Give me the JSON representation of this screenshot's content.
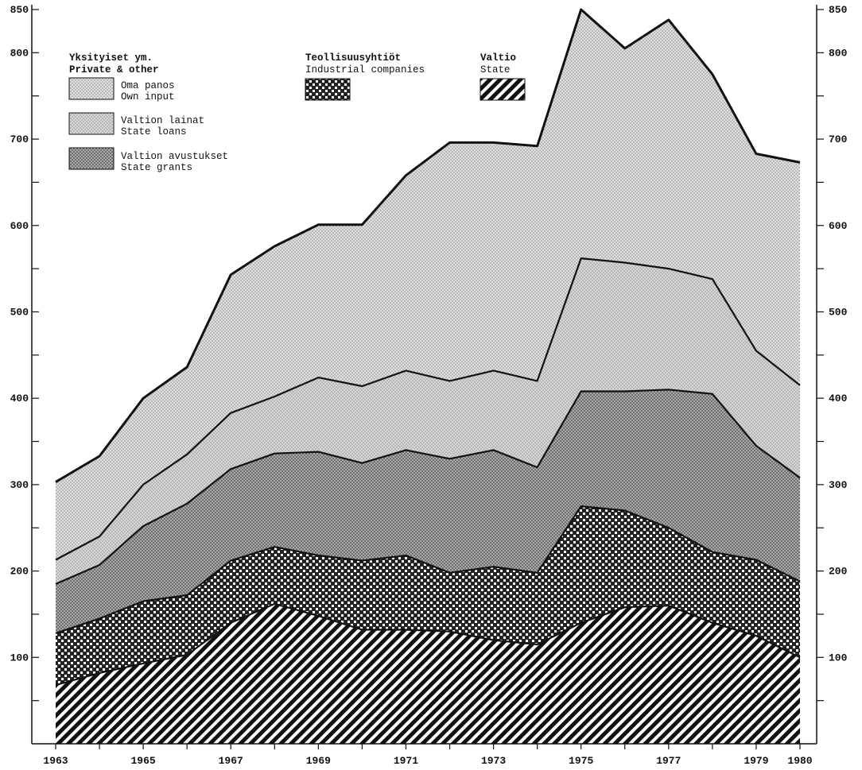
{
  "chart_data": {
    "type": "area",
    "stacked": true,
    "x": [
      1963,
      1964,
      1965,
      1966,
      1967,
      1968,
      1969,
      1970,
      1971,
      1972,
      1973,
      1974,
      1975,
      1976,
      1977,
      1978,
      1979,
      1980
    ],
    "x_tick_labels": [
      "1963",
      "1965",
      "1967",
      "1969",
      "1971",
      "1973",
      "1975",
      "1977",
      "1979",
      "1980"
    ],
    "y_tick_labels": [
      "100",
      "200",
      "300",
      "400",
      "500",
      "600",
      "700",
      "800",
      "850"
    ],
    "ylim": [
      0,
      850
    ],
    "grid": false,
    "legend": {
      "groups": [
        {
          "title_fi": "Yksityiset ym.",
          "title_en": "Private & other",
          "entries": [
            {
              "fi": "Oma panos",
              "en": "Own input",
              "pattern": "fine-dots-light"
            },
            {
              "fi": "Valtion lainat",
              "en": "State loans",
              "pattern": "fine-dots-lighter"
            },
            {
              "fi": "Valtion avustukset",
              "en": "State grants",
              "pattern": "dense-dots"
            }
          ]
        },
        {
          "title_fi": "Teollisuusyhtiöt",
          "title_en": "Industrial companies",
          "entries": [
            {
              "fi": "",
              "en": "",
              "pattern": "crosshatch"
            }
          ]
        },
        {
          "title_fi": "Valtio",
          "title_en": "State",
          "entries": [
            {
              "fi": "",
              "en": "",
              "pattern": "diagonal-lines"
            }
          ]
        }
      ]
    },
    "boundaries": [
      {
        "name": "Valtio / State (top)",
        "values": [
          68,
          82,
          93,
          103,
          140,
          162,
          148,
          132,
          132,
          130,
          120,
          115,
          140,
          158,
          160,
          140,
          125,
          100
        ]
      },
      {
        "name": "Teollisuusyhtiöt / Industrial companies (top)",
        "values": [
          128,
          145,
          165,
          172,
          212,
          228,
          218,
          212,
          218,
          198,
          205,
          198,
          275,
          270,
          250,
          222,
          213,
          188
        ]
      },
      {
        "name": "Valtion avustukset / State grants (top)",
        "values": [
          185,
          207,
          252,
          278,
          318,
          336,
          338,
          325,
          340,
          330,
          340,
          320,
          408,
          408,
          410,
          405,
          345,
          308
        ]
      },
      {
        "name": "Valtion lainat / State loans (top)",
        "values": [
          213,
          240,
          300,
          335,
          383,
          402,
          424,
          414,
          432,
          420,
          432,
          420,
          562,
          557,
          550,
          538,
          455,
          415
        ]
      },
      {
        "name": "Oma panos / Own input (top)",
        "values": [
          303,
          333,
          400,
          436,
          543,
          576,
          601,
          601,
          658,
          696,
          696,
          692,
          850,
          805,
          838,
          775,
          683,
          673
        ]
      }
    ]
  }
}
